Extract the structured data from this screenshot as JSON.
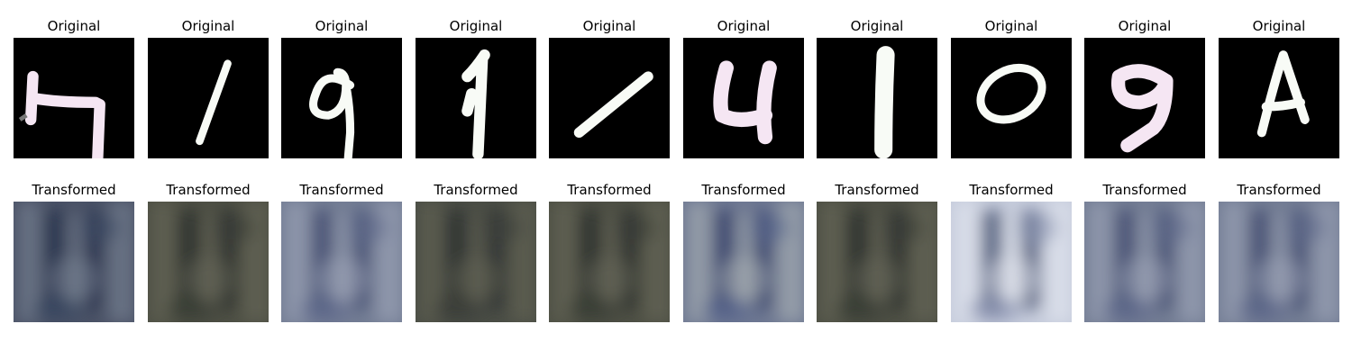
{
  "figure": {
    "rows": [
      {
        "key": "original",
        "tiles": [
          {
            "title": "Original",
            "glyph": "digit-7"
          },
          {
            "title": "Original",
            "glyph": "digit-1-thin"
          },
          {
            "title": "Original",
            "glyph": "digit-9"
          },
          {
            "title": "Original",
            "glyph": "digit-1-serif"
          },
          {
            "title": "Original",
            "glyph": "digit-1-slanted"
          },
          {
            "title": "Original",
            "glyph": "digit-4"
          },
          {
            "title": "Original",
            "glyph": "digit-1-thick"
          },
          {
            "title": "Original",
            "glyph": "digit-0"
          },
          {
            "title": "Original",
            "glyph": "digit-9-bold"
          },
          {
            "title": "Original",
            "glyph": "letter-a"
          }
        ]
      },
      {
        "key": "transformed",
        "tiles": [
          {
            "title": "Transformed",
            "palette": "dark-blue"
          },
          {
            "title": "Transformed",
            "palette": "olive-dark"
          },
          {
            "title": "Transformed",
            "palette": "blue-grey"
          },
          {
            "title": "Transformed",
            "palette": "dark-green"
          },
          {
            "title": "Transformed",
            "palette": "olive-dark"
          },
          {
            "title": "Transformed",
            "palette": "blue-light"
          },
          {
            "title": "Transformed",
            "palette": "olive-dark"
          },
          {
            "title": "Transformed",
            "palette": "white-blue"
          },
          {
            "title": "Transformed",
            "palette": "blue-grey"
          },
          {
            "title": "Transformed",
            "palette": "blue-grey"
          }
        ]
      }
    ],
    "colors": {
      "background": "#ffffff",
      "digit_pink": "#f5e6f3",
      "digit_white": "#f8fbf6"
    }
  }
}
